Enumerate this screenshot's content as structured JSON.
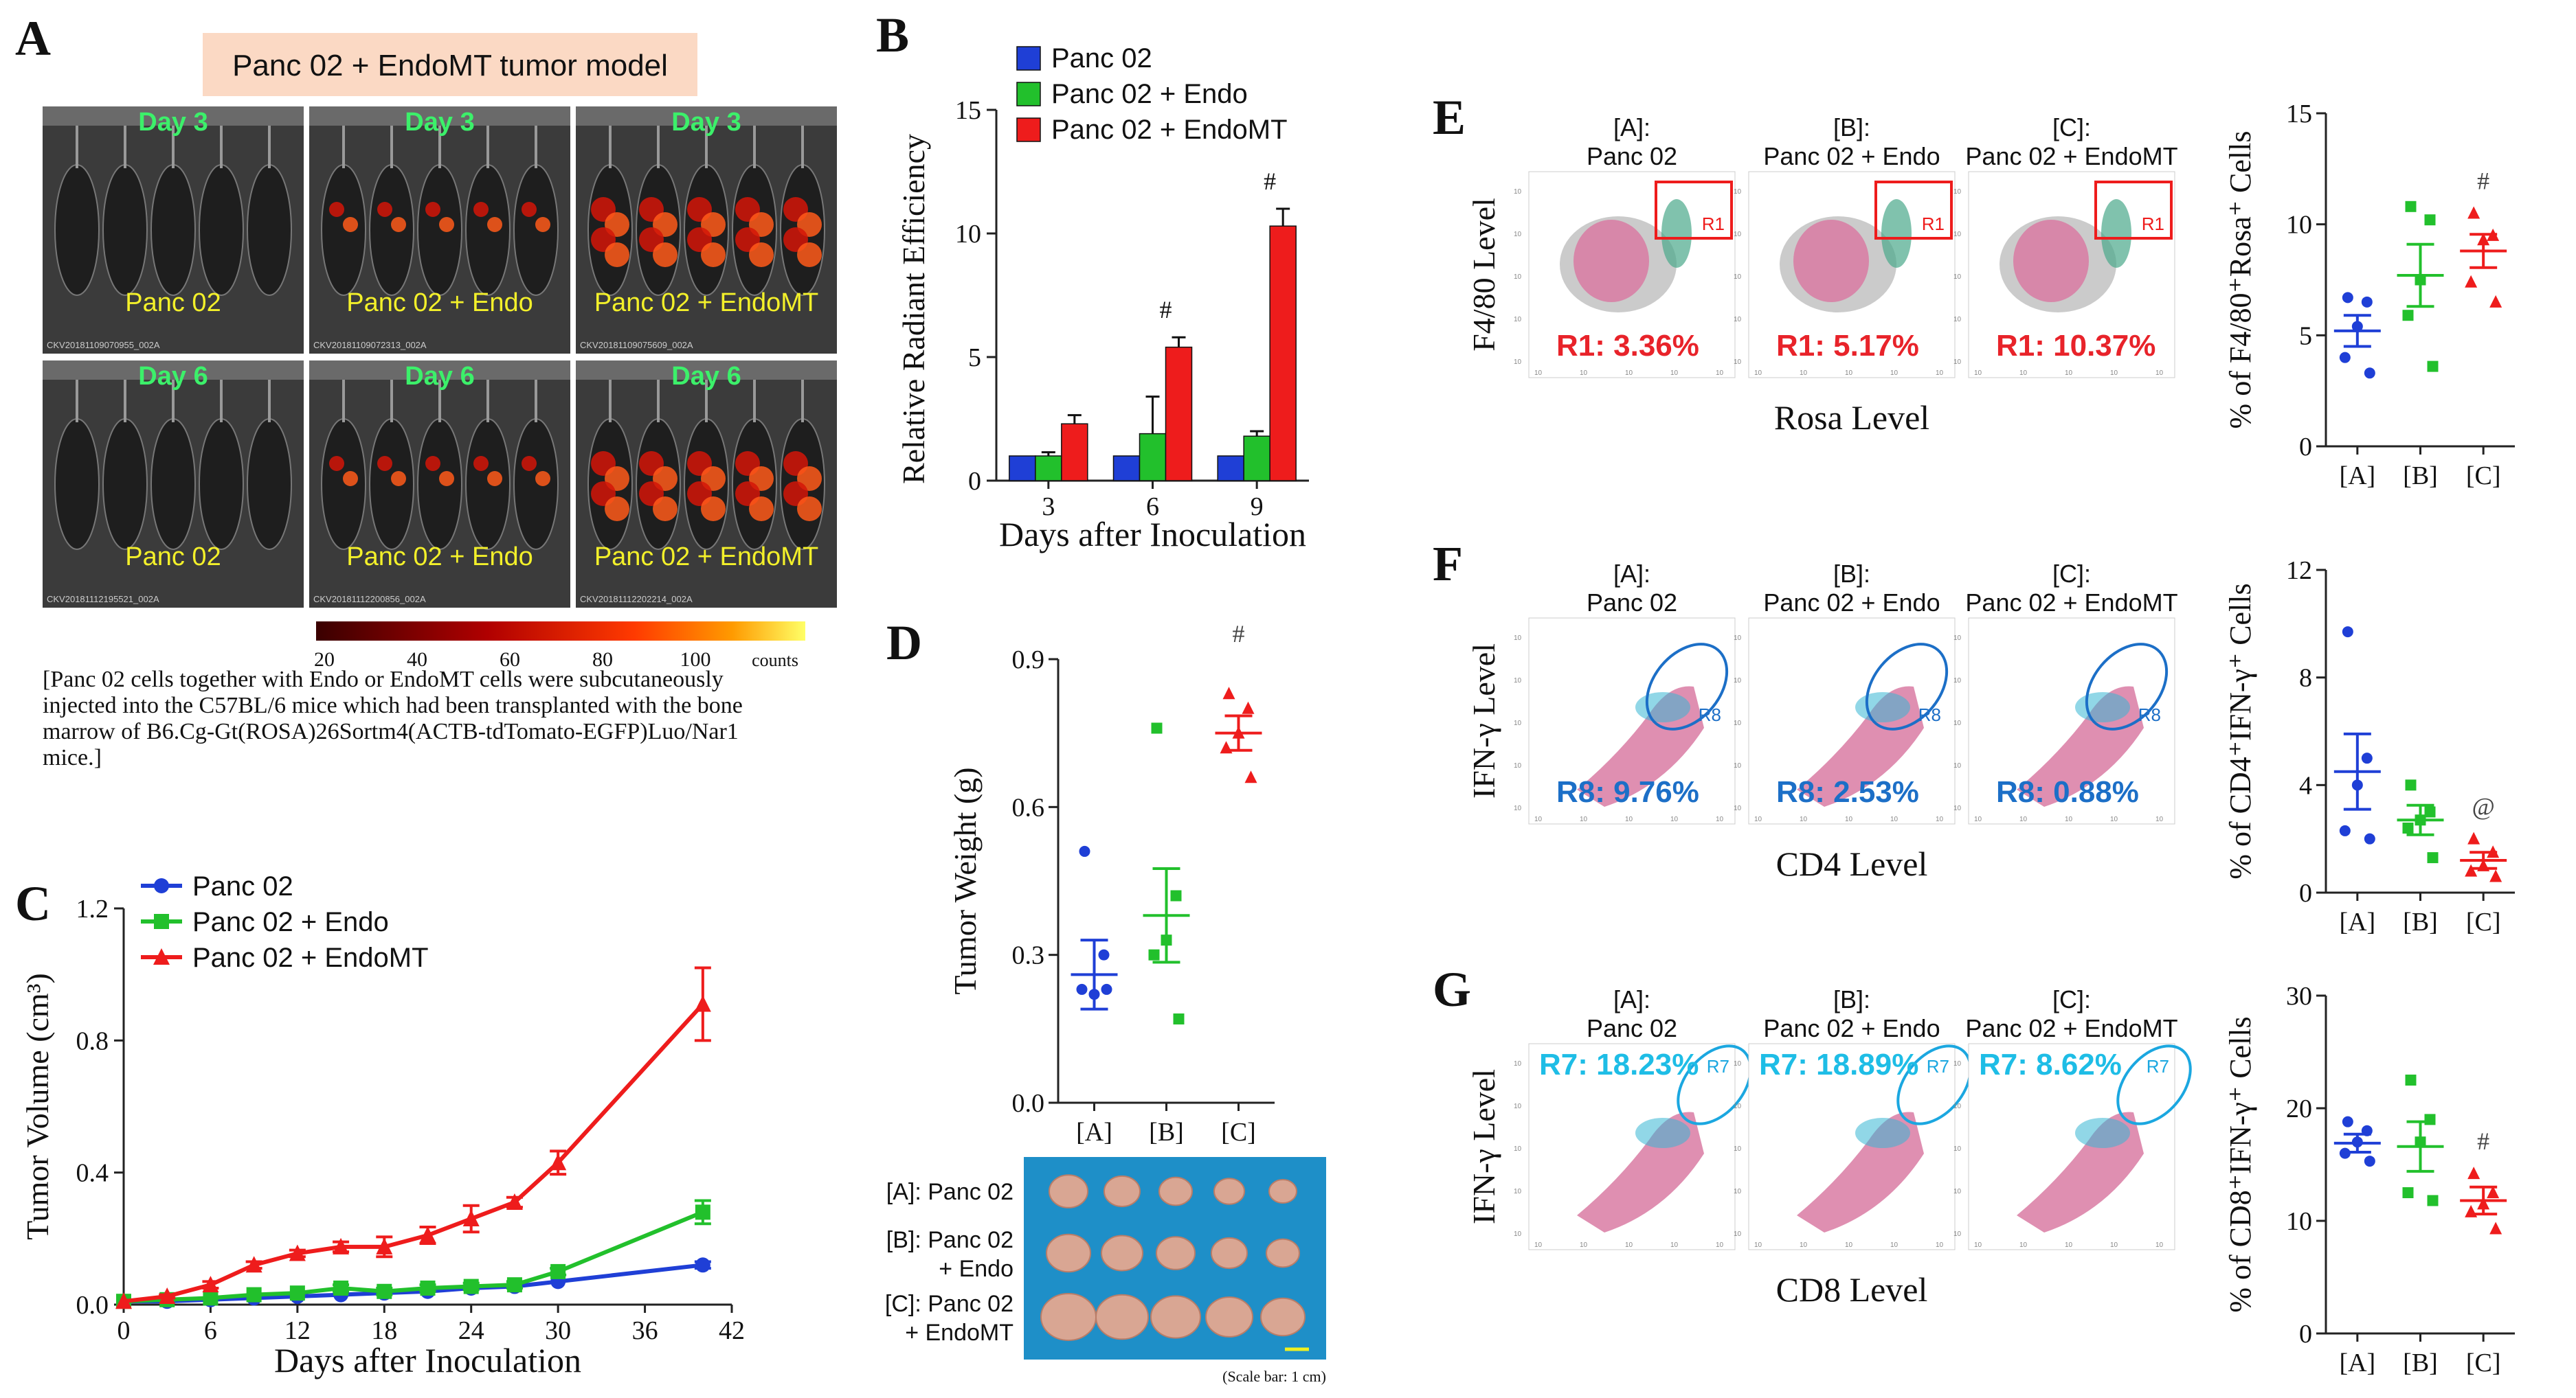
{
  "colors": {
    "blue": "#1f3fd6",
    "green": "#22c02c",
    "red": "#ee1c1c",
    "axis": "#222222",
    "pink_title_bg": "#fbd9c4",
    "cyan": "#1ba7e0",
    "percent_red": "#e8232a",
    "percent_blue": "#1c6fc7",
    "percent_cyan": "#1ebde6",
    "yellow_text": "#f3f02a",
    "green_text": "#3cf06a"
  },
  "panel_a": {
    "letter": "A",
    "title": "Panc 02 + EndoMT tumor model",
    "images": [
      {
        "day": "Day 3",
        "group": "Panc 02",
        "code": "CKV20181109070955_002A",
        "signal": 0
      },
      {
        "day": "Day 3",
        "group": "Panc 02 + Endo",
        "code": "CKV20181109072313_002A",
        "signal": 1
      },
      {
        "day": "Day 3",
        "group": "Panc 02 + EndoMT",
        "code": "CKV20181109075609_002A",
        "signal": 2
      },
      {
        "day": "Day 6",
        "group": "Panc 02",
        "code": "CKV20181112195521_002A",
        "signal": 0
      },
      {
        "day": "Day 6",
        "group": "Panc 02 + Endo",
        "code": "CKV20181112200856_002A",
        "signal": 1
      },
      {
        "day": "Day 6",
        "group": "Panc 02 + EndoMT",
        "code": "CKV20181112202214_002A",
        "signal": 2
      }
    ],
    "colorbar": {
      "ticks": [
        "20",
        "40",
        "60",
        "80",
        "100"
      ],
      "unit": "counts"
    },
    "caption": [
      "[Panc 02 cells together with Endo or EndoMT cells were subcutaneously",
      "injected into the C57BL/6 mice which had been transplanted with the bone",
      "marrow of B6.Cg-Gt(ROSA)26Sortm4(ACTB-tdTomato-EGFP)Luo/Nar1",
      "mice.]"
    ]
  },
  "panel_e": {
    "letter": "E",
    "ylabel": "F4/80 Level",
    "xlabel": "Rosa Level",
    "plots": [
      {
        "title1": "[A]:",
        "title2": "Panc 02",
        "percent": "R1: 3.36%"
      },
      {
        "title1": "[B]:",
        "title2": "Panc 02 + Endo",
        "percent": "R1: 5.17%"
      },
      {
        "title1": "[C]:",
        "title2": "Panc 02 + EndoMT",
        "percent": "R1: 10.37%"
      }
    ],
    "gate": "R1"
  },
  "panel_f": {
    "letter": "F",
    "ylabel": "IFN-γ Level",
    "xlabel": "CD4 Level",
    "plots": [
      {
        "title1": "[A]:",
        "title2": "Panc 02",
        "percent": "R8: 9.76%"
      },
      {
        "title1": "[B]:",
        "title2": "Panc 02 + Endo",
        "percent": "R8: 2.53%"
      },
      {
        "title1": "[C]:",
        "title2": "Panc 02 + EndoMT",
        "percent": "R8: 0.88%"
      }
    ],
    "gate": "R8"
  },
  "panel_g": {
    "letter": "G",
    "ylabel": "IFN-γ Level",
    "xlabel": "CD8 Level",
    "plots": [
      {
        "title1": "[A]:",
        "title2": "Panc 02",
        "percent": "R7: 18.23%"
      },
      {
        "title1": "[B]:",
        "title2": "Panc 02 + Endo",
        "percent": "R7: 18.89%"
      },
      {
        "title1": "[C]:",
        "title2": "Panc 02 + EndoMT",
        "percent": "R7: 8.62%"
      }
    ],
    "gate": "R7"
  },
  "flow_tick": "10",
  "panel_d_photo": {
    "labels": [
      [
        "[A]: Panc 02"
      ],
      [
        "[B]: Panc 02",
        "+ Endo"
      ],
      [
        "[C]: Panc 02",
        "+ EndoMT"
      ]
    ],
    "scale": "(Scale bar: 1 cm)"
  },
  "chart_data": [
    {
      "id": "B",
      "type": "bar",
      "title": "",
      "xlabel": "Days after Inoculation",
      "ylabel": "Relative Radiant Efficiency",
      "categories": [
        "3",
        "6",
        "9"
      ],
      "ylim": [
        0,
        15
      ],
      "yticks": [
        0,
        5,
        10,
        15
      ],
      "legend": "top-left",
      "series": [
        {
          "name": "Panc 02",
          "values": [
            1.0,
            1.0,
            1.0
          ],
          "errors": [
            0.0,
            0.0,
            0.0
          ]
        },
        {
          "name": "Panc 02 + Endo",
          "values": [
            1.0,
            1.9,
            1.8
          ],
          "errors": [
            0.15,
            1.5,
            0.2
          ]
        },
        {
          "name": "Panc 02 + EndoMT",
          "values": [
            2.3,
            5.4,
            10.3
          ],
          "errors": [
            0.35,
            0.4,
            0.7
          ]
        }
      ],
      "annotations": [
        {
          "category": "6",
          "text": "#"
        },
        {
          "category": "9",
          "text": "#"
        }
      ]
    },
    {
      "id": "C",
      "type": "line",
      "xlabel": "Days after Inoculation",
      "ylabel": "Tumor Volume (cm³)",
      "xlim": [
        0,
        42
      ],
      "xticks": [
        0,
        6,
        12,
        18,
        24,
        30,
        36,
        42
      ],
      "ylim": [
        0,
        1.2
      ],
      "yticks": [
        "0.0",
        "0.4",
        "0.8",
        "1.2"
      ],
      "legend": "top-left",
      "series": [
        {
          "name": "Panc 02",
          "x": [
            0,
            3,
            6,
            9,
            12,
            15,
            18,
            21,
            24,
            27,
            30,
            40
          ],
          "values": [
            0.01,
            0.01,
            0.015,
            0.02,
            0.025,
            0.03,
            0.035,
            0.04,
            0.05,
            0.055,
            0.07,
            0.12
          ],
          "errors": [
            0,
            0,
            0,
            0,
            0,
            0,
            0,
            0,
            0,
            0,
            0,
            0.01
          ]
        },
        {
          "name": "Panc 02 + Endo",
          "x": [
            0,
            3,
            6,
            9,
            12,
            15,
            18,
            21,
            24,
            27,
            30,
            40
          ],
          "values": [
            0.01,
            0.015,
            0.02,
            0.03,
            0.035,
            0.05,
            0.04,
            0.05,
            0.055,
            0.06,
            0.1,
            0.28
          ],
          "errors": [
            0,
            0,
            0,
            0,
            0,
            0.01,
            0.01,
            0.01,
            0.01,
            0.01,
            0.01,
            0.035
          ]
        },
        {
          "name": "Panc 02 + EndoMT",
          "x": [
            0,
            3,
            6,
            9,
            12,
            15,
            18,
            21,
            24,
            27,
            30,
            40
          ],
          "values": [
            0.01,
            0.025,
            0.06,
            0.12,
            0.155,
            0.175,
            0.175,
            0.21,
            0.26,
            0.31,
            0.43,
            0.91
          ],
          "errors": [
            0,
            0.005,
            0.01,
            0.01,
            0.01,
            0.015,
            0.03,
            0.025,
            0.04,
            0.015,
            0.035,
            0.11
          ]
        }
      ]
    },
    {
      "id": "D",
      "type": "scatter",
      "ylabel": "Tumor Weight (g)",
      "categories": [
        "[A]",
        "[B]",
        "[C]"
      ],
      "ylim": [
        0,
        0.9
      ],
      "yticks": [
        "0.0",
        "0.3",
        "0.6",
        "0.9"
      ],
      "groups": [
        {
          "name": "[A]",
          "points": [
            0.51,
            0.3,
            0.22,
            0.23,
            0.23
          ],
          "mean": 0.26,
          "sem": 0.07
        },
        {
          "name": "[B]",
          "points": [
            0.76,
            0.42,
            0.33,
            0.3,
            0.17
          ],
          "mean": 0.38,
          "sem": 0.095
        },
        {
          "name": "[C]",
          "points": [
            0.83,
            0.8,
            0.75,
            0.72,
            0.66
          ],
          "mean": 0.75,
          "sem": 0.035
        }
      ],
      "annotation": "#"
    },
    {
      "id": "E",
      "type": "scatter",
      "ylabel": "% of F4/80⁺Rosa⁺ Cells",
      "categories": [
        "[A]",
        "[B]",
        "[C]"
      ],
      "ylim": [
        0,
        15
      ],
      "yticks": [
        0,
        5,
        10,
        15
      ],
      "groups": [
        {
          "name": "[A]",
          "points": [
            6.7,
            6.5,
            5.4,
            4.0,
            3.3
          ],
          "mean": 5.2,
          "sem": 0.7
        },
        {
          "name": "[B]",
          "points": [
            10.8,
            10.2,
            7.5,
            5.9,
            3.6
          ],
          "mean": 7.7,
          "sem": 1.4
        },
        {
          "name": "[C]",
          "points": [
            10.5,
            9.5,
            9.3,
            7.4,
            6.5
          ],
          "mean": 8.8,
          "sem": 0.75
        }
      ],
      "annotation": "#"
    },
    {
      "id": "F",
      "type": "scatter",
      "ylabel": "% of CD4⁺IFN-γ⁺ Cells",
      "categories": [
        "[A]",
        "[B]",
        "[C]"
      ],
      "ylim": [
        0,
        12
      ],
      "yticks": [
        0,
        4,
        8,
        12
      ],
      "groups": [
        {
          "name": "[A]",
          "points": [
            9.7,
            5.0,
            4.0,
            2.3,
            2.0
          ],
          "mean": 4.5,
          "sem": 1.4
        },
        {
          "name": "[B]",
          "points": [
            4.0,
            3.0,
            2.7,
            2.4,
            1.3
          ],
          "mean": 2.7,
          "sem": 0.55
        },
        {
          "name": "[C]",
          "points": [
            2.0,
            1.5,
            1.0,
            0.8,
            0.6
          ],
          "mean": 1.2,
          "sem": 0.3
        }
      ],
      "annotation": "@"
    },
    {
      "id": "G",
      "type": "scatter",
      "ylabel": "% of CD8⁺IFN-γ⁺ Cells",
      "categories": [
        "[A]",
        "[B]",
        "[C]"
      ],
      "ylim": [
        0,
        30
      ],
      "yticks": [
        0,
        10,
        20,
        30
      ],
      "groups": [
        {
          "name": "[A]",
          "points": [
            18.8,
            18.0,
            17.0,
            16.0,
            15.3
          ],
          "mean": 16.9,
          "sem": 0.8
        },
        {
          "name": "[B]",
          "points": [
            22.5,
            19.0,
            17.0,
            12.5,
            11.8
          ],
          "mean": 16.6,
          "sem": 2.2
        },
        {
          "name": "[C]",
          "points": [
            14.2,
            12.5,
            11.5,
            10.8,
            9.3
          ],
          "mean": 11.8,
          "sem": 1.2
        }
      ],
      "annotation": "#"
    }
  ]
}
